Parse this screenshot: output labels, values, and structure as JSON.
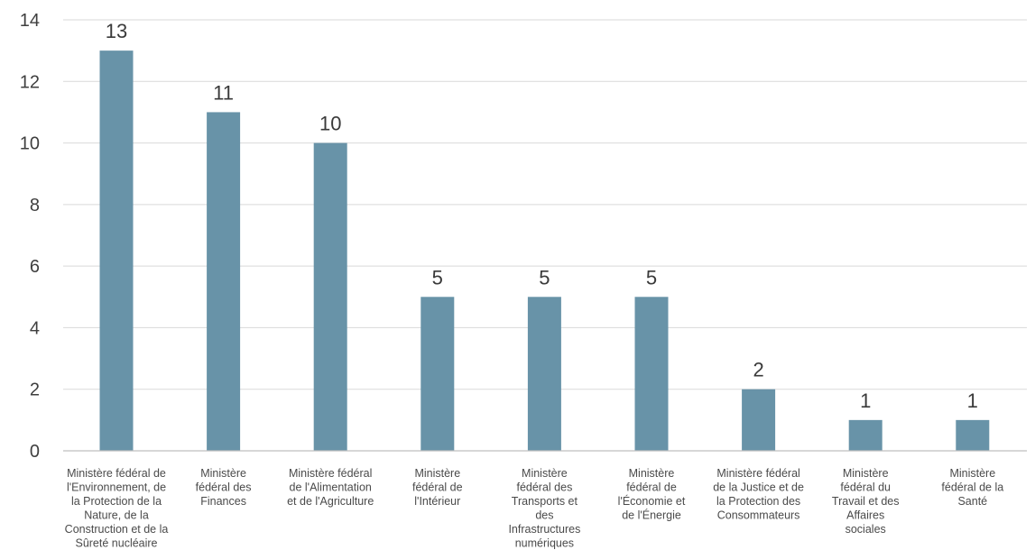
{
  "chart_data": {
    "type": "bar",
    "categories": [
      [
        "Ministère fédéral de",
        "l'Environnement, de",
        "la Protection de la",
        "Nature, de la",
        "Construction et de la",
        "Sûreté nucléaire"
      ],
      [
        "Ministère",
        "fédéral des",
        "Finances"
      ],
      [
        "Ministère fédéral",
        "de l'Alimentation",
        "et de l'Agriculture"
      ],
      [
        "Ministère",
        "fédéral de",
        "l'Intérieur"
      ],
      [
        "Ministère",
        "fédéral des",
        "Transports et",
        "des",
        "Infrastructures",
        "numériques"
      ],
      [
        "Ministère",
        "fédéral de",
        "l'Économie et",
        "de l'Énergie"
      ],
      [
        "Ministère fédéral",
        "de la Justice et de",
        "la Protection des",
        "Consommateurs"
      ],
      [
        "Ministère",
        "fédéral du",
        "Travail et des",
        "Affaires",
        "sociales"
      ],
      [
        "Ministère",
        "fédéral de la",
        "Santé"
      ]
    ],
    "values": [
      13,
      11,
      10,
      5,
      5,
      5,
      2,
      1,
      1
    ],
    "data_labels": [
      "13",
      "11",
      "10",
      "5",
      "5",
      "5",
      "2",
      "1",
      "1"
    ],
    "yticks": [
      "0",
      "2",
      "4",
      "6",
      "8",
      "10",
      "12",
      "14"
    ],
    "ylim": [
      0,
      14
    ],
    "grid": true,
    "colors": {
      "bar": "#6893a8",
      "grid": "#d9d9d9",
      "axis": "#bfbfbf"
    }
  }
}
